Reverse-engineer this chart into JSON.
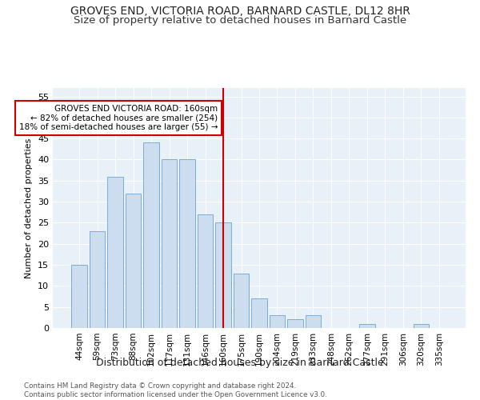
{
  "title": "GROVES END, VICTORIA ROAD, BARNARD CASTLE, DL12 8HR",
  "subtitle": "Size of property relative to detached houses in Barnard Castle",
  "xlabel": "Distribution of detached houses by size in Barnard Castle",
  "ylabel": "Number of detached properties",
  "categories": [
    "44sqm",
    "59sqm",
    "73sqm",
    "88sqm",
    "102sqm",
    "117sqm",
    "131sqm",
    "146sqm",
    "160sqm",
    "175sqm",
    "190sqm",
    "204sqm",
    "219sqm",
    "233sqm",
    "248sqm",
    "262sqm",
    "277sqm",
    "291sqm",
    "306sqm",
    "320sqm",
    "335sqm"
  ],
  "values": [
    15,
    23,
    36,
    32,
    44,
    40,
    40,
    27,
    25,
    13,
    7,
    3,
    2,
    3,
    0,
    0,
    1,
    0,
    0,
    1,
    0
  ],
  "bar_color": "#ccddf0",
  "bar_edge_color": "#7badd4",
  "vline_x_index": 8,
  "vline_color": "#cc0000",
  "annotation_text": "GROVES END VICTORIA ROAD: 160sqm\n← 82% of detached houses are smaller (254)\n18% of semi-detached houses are larger (55) →",
  "annotation_box_color": "#cc0000",
  "ylim": [
    0,
    57
  ],
  "yticks": [
    0,
    5,
    10,
    15,
    20,
    25,
    30,
    35,
    40,
    45,
    50,
    55
  ],
  "bg_color": "#e8f0f8",
  "footer_text": "Contains HM Land Registry data © Crown copyright and database right 2024.\nContains public sector information licensed under the Open Government Licence v3.0.",
  "title_fontsize": 10,
  "subtitle_fontsize": 9.5,
  "ylabel_fontsize": 8,
  "xlabel_fontsize": 9
}
